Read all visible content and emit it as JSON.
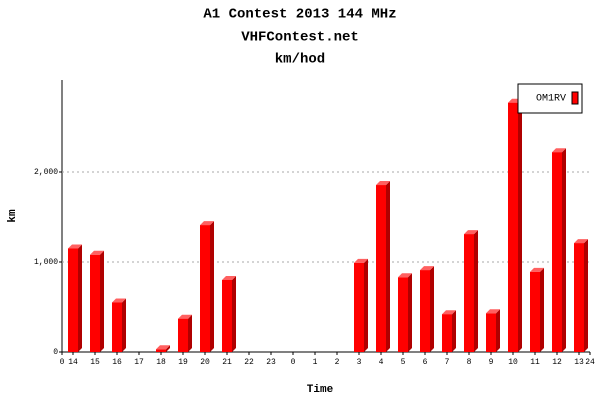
{
  "chart_data": {
    "type": "bar",
    "title": "A1 Contest 2013 144 MHz",
    "subtitle": "VHFContest.net",
    "subtitle2": "km/hod",
    "x_label": "Time",
    "y_label": "km",
    "categories": [
      "14",
      "15",
      "16",
      "17",
      "18",
      "19",
      "20",
      "21",
      "22",
      "23",
      "0",
      "1",
      "2",
      "3",
      "4",
      "5",
      "6",
      "7",
      "8",
      "9",
      "10",
      "11",
      "12",
      "13"
    ],
    "xlim": [
      0,
      24
    ],
    "xticks": [
      0,
      24
    ],
    "series": [
      {
        "name": "OM1RV",
        "color": "#ff0000",
        "values": [
          1150,
          1080,
          550,
          0,
          30,
          370,
          1410,
          800,
          0,
          0,
          0,
          0,
          0,
          990,
          1855,
          830,
          910,
          420,
          1310,
          430,
          2770,
          890,
          2220,
          1210
        ]
      }
    ],
    "ylim": [
      0,
      3000
    ],
    "yticks": [
      0,
      {
        "value": 1000,
        "label": "1,000"
      },
      {
        "value": 2000,
        "label": "2,000"
      }
    ],
    "grid": true,
    "legend": "top-right"
  }
}
